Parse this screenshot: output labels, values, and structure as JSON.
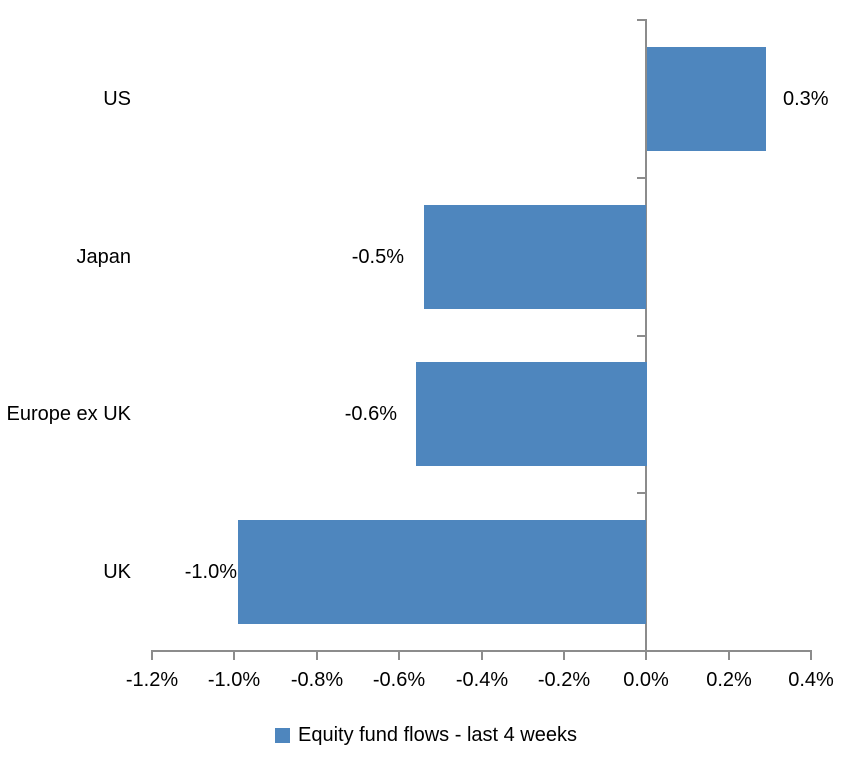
{
  "background_color": "#ffffff",
  "colors": {
    "bar": "#4e86be",
    "axis": "#8c8c8c",
    "text": "#000000"
  },
  "chart_data": {
    "type": "bar",
    "orientation": "horizontal",
    "title": "",
    "xlabel": "",
    "ylabel": "",
    "grid": false,
    "categories": [
      "US",
      "Japan",
      "Europe ex UK",
      "UK"
    ],
    "values": [
      0.3,
      -0.5,
      -0.6,
      -1.0
    ],
    "values_plotted": [
      0.29,
      -0.54,
      -0.56,
      -0.99
    ],
    "data_labels": [
      "0.3%",
      "-0.5%",
      "-0.6%",
      "-1.0%"
    ],
    "bar_color": "#4e86be",
    "xlim": [
      -1.2,
      0.4
    ],
    "x_tick_values": [
      -1.2,
      -1.0,
      -0.8,
      -0.6,
      -0.4,
      -0.2,
      0.0,
      0.2,
      0.4
    ],
    "x_tick_labels": [
      "-1.2%",
      "-1.0%",
      "-0.8%",
      "-0.6%",
      "-0.4%",
      "-0.2%",
      "0.0%",
      "0.2%",
      "0.4%"
    ],
    "legend": {
      "position": "bottom",
      "items": [
        {
          "label": "Equity fund flows - last 4 weeks",
          "color": "#4e86be"
        }
      ]
    }
  }
}
